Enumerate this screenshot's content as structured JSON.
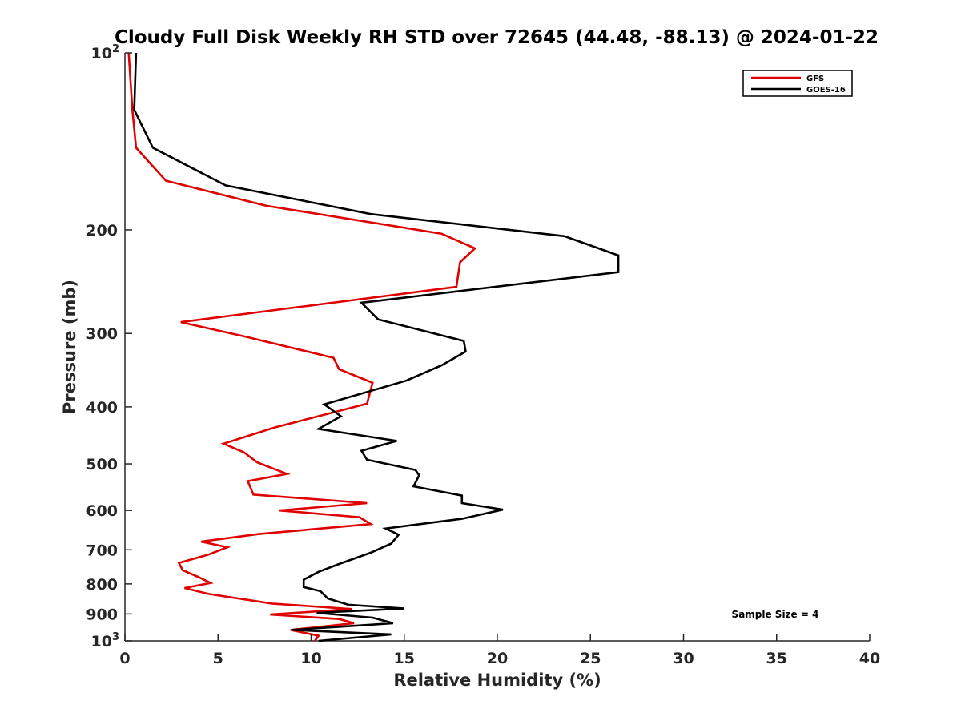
{
  "chart_data": {
    "type": "line",
    "title": "Cloudy Full Disk Weekly RH STD over 72645 (44.48, -88.13) @ 2024-01-22",
    "xlabel": "Relative Humidity (%)",
    "ylabel": "Pressure (mb)",
    "xlim": [
      0,
      40
    ],
    "ylim": [
      100,
      1000
    ],
    "y_scale": "log",
    "y_reversed": true,
    "x_ticks": [
      "0",
      "5",
      "10",
      "15",
      "20",
      "25",
      "30",
      "35",
      "40"
    ],
    "y_ticks": [
      {
        "value": 100,
        "base": "10",
        "exp": "2"
      },
      {
        "value": 200,
        "label": "200"
      },
      {
        "value": 300,
        "label": "300"
      },
      {
        "value": 400,
        "label": "400"
      },
      {
        "value": 500,
        "label": "500"
      },
      {
        "value": 600,
        "label": "600"
      },
      {
        "value": 700,
        "label": "700"
      },
      {
        "value": 800,
        "label": "800"
      },
      {
        "value": 900,
        "label": "900"
      },
      {
        "value": 1000,
        "base": "10",
        "exp": "3"
      }
    ],
    "grid": false,
    "legend_position": "top-right",
    "annotation": "Sample Size = 4",
    "series": [
      {
        "name": "GFS",
        "color": "#e00000",
        "points": [
          [
            0.2,
            100
          ],
          [
            0.4,
            125
          ],
          [
            0.6,
            145
          ],
          [
            2.2,
            165
          ],
          [
            7.6,
            182
          ],
          [
            17.0,
            203
          ],
          [
            18.8,
            215
          ],
          [
            18.0,
            227
          ],
          [
            17.8,
            250
          ],
          [
            3.0,
            287
          ],
          [
            6.5,
            304
          ],
          [
            11.2,
            330
          ],
          [
            11.5,
            345
          ],
          [
            13.3,
            364
          ],
          [
            13.0,
            395
          ],
          [
            8.0,
            434
          ],
          [
            5.3,
            462
          ],
          [
            6.4,
            478
          ],
          [
            7.1,
            497
          ],
          [
            8.7,
            520
          ],
          [
            6.6,
            535
          ],
          [
            6.9,
            564
          ],
          [
            13.0,
            583
          ],
          [
            8.3,
            600
          ],
          [
            12.6,
            616
          ],
          [
            13.2,
            633
          ],
          [
            7.2,
            658
          ],
          [
            4.1,
            678
          ],
          [
            5.5,
            693
          ],
          [
            4.5,
            713
          ],
          [
            2.9,
            737
          ],
          [
            3.1,
            758
          ],
          [
            4.0,
            780
          ],
          [
            4.6,
            797
          ],
          [
            3.2,
            813
          ],
          [
            4.5,
            832
          ],
          [
            7.9,
            864
          ],
          [
            12.2,
            883
          ],
          [
            7.8,
            902
          ],
          [
            11.5,
            918
          ],
          [
            12.3,
            933
          ],
          [
            8.9,
            958
          ],
          [
            10.4,
            980
          ],
          [
            10.2,
            1000
          ]
        ]
      },
      {
        "name": "GOES-16",
        "color": "#000000",
        "points": [
          [
            0.6,
            100
          ],
          [
            0.5,
            125
          ],
          [
            1.5,
            145
          ],
          [
            5.4,
            168
          ],
          [
            13.2,
            188
          ],
          [
            23.6,
            205
          ],
          [
            26.5,
            221
          ],
          [
            26.5,
            236
          ],
          [
            12.7,
            266
          ],
          [
            13.6,
            284
          ],
          [
            18.2,
            309
          ],
          [
            18.3,
            322
          ],
          [
            17.0,
            340
          ],
          [
            15.1,
            361
          ],
          [
            10.7,
            396
          ],
          [
            11.6,
            415
          ],
          [
            10.4,
            436
          ],
          [
            14.6,
            457
          ],
          [
            12.7,
            475
          ],
          [
            13.0,
            492
          ],
          [
            15.6,
            512
          ],
          [
            15.8,
            523
          ],
          [
            15.5,
            546
          ],
          [
            18.1,
            566
          ],
          [
            18.1,
            583
          ],
          [
            20.3,
            598
          ],
          [
            18.1,
            620
          ],
          [
            14.0,
            644
          ],
          [
            14.7,
            660
          ],
          [
            14.3,
            683
          ],
          [
            13.2,
            708
          ],
          [
            11.5,
            740
          ],
          [
            10.4,
            763
          ],
          [
            9.6,
            787
          ],
          [
            9.6,
            810
          ],
          [
            10.5,
            823
          ],
          [
            10.9,
            847
          ],
          [
            12.0,
            868
          ],
          [
            15.0,
            881
          ],
          [
            10.3,
            896
          ],
          [
            13.3,
            913
          ],
          [
            14.4,
            933
          ],
          [
            9.0,
            958
          ],
          [
            14.3,
            975
          ],
          [
            10.4,
            1000
          ]
        ]
      }
    ]
  }
}
